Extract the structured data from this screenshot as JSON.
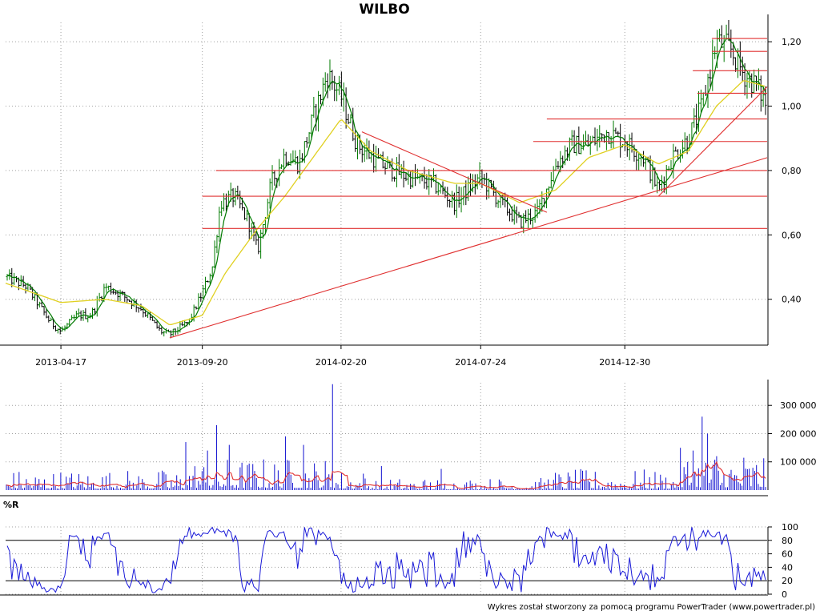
{
  "title": "WILBO",
  "footer": "Wykres został stworzony za pomocą programu PowerTrader (www.powertrader.pl)",
  "colors": {
    "candle_up": "#007a00",
    "candle_down": "#000000",
    "sma": "#e0d020",
    "trend": "#e03030",
    "volume": "#1010d0",
    "volume_avg": "#e03030",
    "wr": "#1a1ad8",
    "grid": "#a0a0a0",
    "axis": "#000000"
  },
  "chart_data": [
    {
      "type": "candlestick",
      "title": "WILBO",
      "x_tick_labels": [
        "2013-04-17",
        "2013-09-20",
        "2014-02-20",
        "2014-07-24",
        "2014-12-30"
      ],
      "y_tick_labels": [
        "1,20",
        "1,00",
        "0,80",
        "0,60",
        "0,40"
      ],
      "y_ticks": [
        1.2,
        1.0,
        0.8,
        0.6,
        0.4
      ],
      "ylim": [
        0.26,
        1.26
      ],
      "x_range": [
        "2013-02-15",
        "2015-06-05"
      ],
      "close_path": [
        [
          "2013-02-15",
          0.47
        ],
        [
          "2013-03-10",
          0.44
        ],
        [
          "2013-04-05",
          0.33
        ],
        [
          "2013-04-17",
          0.3
        ],
        [
          "2013-05-05",
          0.35
        ],
        [
          "2013-05-20",
          0.35
        ],
        [
          "2013-06-05",
          0.44
        ],
        [
          "2013-06-25",
          0.41
        ],
        [
          "2013-07-15",
          0.37
        ],
        [
          "2013-08-05",
          0.3
        ],
        [
          "2013-08-15",
          0.29
        ],
        [
          "2013-09-05",
          0.33
        ],
        [
          "2013-09-20",
          0.42
        ],
        [
          "2013-10-01",
          0.5
        ],
        [
          "2013-10-10",
          0.7
        ],
        [
          "2013-10-25",
          0.72
        ],
        [
          "2013-11-10",
          0.64
        ],
        [
          "2013-11-20",
          0.55
        ],
        [
          "2013-12-05",
          0.76
        ],
        [
          "2013-12-20",
          0.85
        ],
        [
          "2014-01-05",
          0.82
        ],
        [
          "2014-01-20",
          0.96
        ],
        [
          "2014-02-05",
          1.1
        ],
        [
          "2014-02-20",
          1.03
        ],
        [
          "2014-03-10",
          0.88
        ],
        [
          "2014-04-05",
          0.82
        ],
        [
          "2014-05-05",
          0.78
        ],
        [
          "2014-06-01",
          0.76
        ],
        [
          "2014-06-25",
          0.7
        ],
        [
          "2014-07-24",
          0.78
        ],
        [
          "2014-08-15",
          0.7
        ],
        [
          "2014-09-05",
          0.64
        ],
        [
          "2014-09-25",
          0.67
        ],
        [
          "2014-10-15",
          0.82
        ],
        [
          "2014-11-01",
          0.88
        ],
        [
          "2014-11-20",
          0.88
        ],
        [
          "2014-12-10",
          0.92
        ],
        [
          "2014-12-30",
          0.89
        ],
        [
          "2015-01-20",
          0.84
        ],
        [
          "2015-02-05",
          0.74
        ],
        [
          "2015-02-20",
          0.84
        ],
        [
          "2015-03-10",
          0.9
        ],
        [
          "2015-03-25",
          1.0
        ],
        [
          "2015-04-10",
          1.2
        ],
        [
          "2015-04-25",
          1.18
        ],
        [
          "2015-05-10",
          1.1
        ],
        [
          "2015-05-25",
          1.06
        ],
        [
          "2015-06-05",
          1.0
        ]
      ],
      "sma_path": [
        [
          "2013-02-15",
          0.45
        ],
        [
          "2013-04-17",
          0.39
        ],
        [
          "2013-06-05",
          0.4
        ],
        [
          "2013-07-15",
          0.38
        ],
        [
          "2013-08-15",
          0.32
        ],
        [
          "2013-09-20",
          0.35
        ],
        [
          "2013-10-15",
          0.48
        ],
        [
          "2013-11-20",
          0.62
        ],
        [
          "2013-12-20",
          0.72
        ],
        [
          "2014-01-20",
          0.84
        ],
        [
          "2014-02-20",
          0.96
        ],
        [
          "2014-03-25",
          0.86
        ],
        [
          "2014-05-05",
          0.8
        ],
        [
          "2014-06-25",
          0.76
        ],
        [
          "2014-07-24",
          0.76
        ],
        [
          "2014-09-05",
          0.7
        ],
        [
          "2014-10-15",
          0.74
        ],
        [
          "2014-11-20",
          0.84
        ],
        [
          "2014-12-30",
          0.88
        ],
        [
          "2015-02-05",
          0.82
        ],
        [
          "2015-03-10",
          0.86
        ],
        [
          "2015-04-10",
          1.0
        ],
        [
          "2015-05-10",
          1.08
        ],
        [
          "2015-06-05",
          1.06
        ]
      ],
      "trend_lines": [
        {
          "from": [
            "2013-08-15",
            0.28
          ],
          "to": [
            "2015-06-05",
            0.84
          ]
        },
        {
          "from": [
            "2014-03-15",
            0.92
          ],
          "to": [
            "2014-10-05",
            0.67
          ]
        },
        {
          "from": [
            "2015-02-05",
            0.72
          ],
          "to": [
            "2015-06-05",
            1.06
          ]
        },
        {
          "from": [
            "2013-09-20",
            0.62
          ],
          "to": [
            "2015-06-05",
            0.62
          ]
        },
        {
          "from": [
            "2013-09-20",
            0.72
          ],
          "to": [
            "2015-06-05",
            0.72
          ]
        },
        {
          "from": [
            "2013-10-05",
            0.8
          ],
          "to": [
            "2015-06-05",
            0.8
          ]
        },
        {
          "from": [
            "2014-09-20",
            0.89
          ],
          "to": [
            "2015-06-05",
            0.89
          ]
        },
        {
          "from": [
            "2014-10-05",
            0.96
          ],
          "to": [
            "2015-06-05",
            0.96
          ]
        },
        {
          "from": [
            "2015-03-20",
            1.04
          ],
          "to": [
            "2015-06-05",
            1.04
          ]
        },
        {
          "from": [
            "2015-03-15",
            1.11
          ],
          "to": [
            "2015-06-05",
            1.11
          ]
        },
        {
          "from": [
            "2015-04-05",
            1.17
          ],
          "to": [
            "2015-06-05",
            1.17
          ]
        },
        {
          "from": [
            "2015-04-05",
            1.21
          ],
          "to": [
            "2015-06-05",
            1.21
          ]
        }
      ],
      "grid": true
    },
    {
      "type": "bar",
      "series_type": "volume",
      "y_tick_labels": [
        "300 000",
        "200 000",
        "100 000"
      ],
      "y_ticks": [
        300000,
        200000,
        100000
      ],
      "ylim": [
        0,
        380000
      ],
      "spikes": [
        [
          "2013-09-01",
          170000
        ],
        [
          "2013-09-25",
          140000
        ],
        [
          "2013-10-05",
          230000
        ],
        [
          "2013-10-20",
          160000
        ],
        [
          "2013-12-20",
          190000
        ],
        [
          "2014-01-10",
          160000
        ],
        [
          "2014-02-10",
          375000
        ],
        [
          "2014-04-05",
          85000
        ],
        [
          "2014-06-10",
          75000
        ],
        [
          "2015-03-15",
          140000
        ],
        [
          "2015-03-25",
          260000
        ],
        [
          "2015-04-01",
          200000
        ],
        [
          "2015-04-10",
          120000
        ]
      ],
      "grid": true
    },
    {
      "type": "line",
      "series_type": "williams_r",
      "label": "%R",
      "y_tick_labels": [
        "100",
        "80",
        "60",
        "40",
        "20",
        "0"
      ],
      "y_ticks": [
        100,
        80,
        60,
        40,
        20,
        0
      ],
      "ylim": [
        0,
        100
      ],
      "reference_lines": [
        80,
        20
      ],
      "grid": true
    }
  ]
}
